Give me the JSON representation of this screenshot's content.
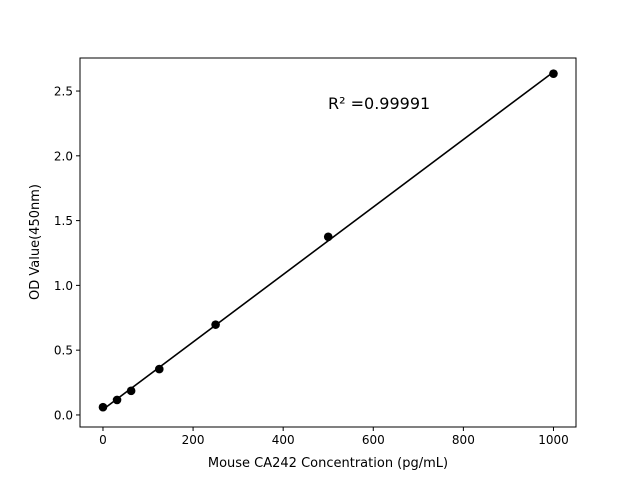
{
  "chart_data": {
    "type": "scatter",
    "title": "",
    "xlabel": "Mouse CA242 Concentration (pg/mL)",
    "ylabel": "OD Value(450nm)",
    "x": [
      0,
      31.25,
      62.5,
      125,
      250,
      500,
      1000
    ],
    "y": [
      0.06,
      0.116,
      0.186,
      0.354,
      0.697,
      1.375,
      2.634
    ],
    "fit": "linear",
    "annotation": "R² =0.99991",
    "xlim": [
      -51,
      1050
    ],
    "ylim": [
      -0.093,
      2.755
    ],
    "xticks": [
      "0",
      "200",
      "400",
      "600",
      "800",
      "1000"
    ],
    "yticks": [
      "0.0",
      "0.5",
      "1.0",
      "1.5",
      "2.0",
      "2.5"
    ],
    "grid": false,
    "colors": {
      "points": "#000000",
      "line": "#000000"
    }
  }
}
